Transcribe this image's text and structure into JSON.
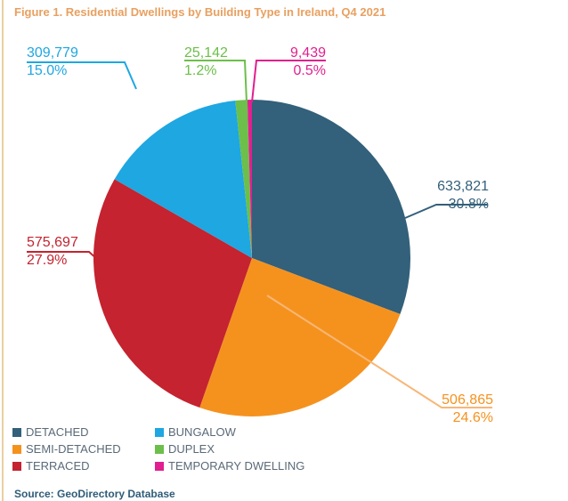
{
  "chart_data": {
    "type": "pie",
    "title": "Figure 1. Residential Dwellings by Building Type in Ireland, Q4 2021",
    "source": "Source: GeoDirectory Database",
    "legend_placement": "bottom-left",
    "slices": [
      {
        "name": "DETACHED",
        "value": 633821,
        "value_label": "633,821",
        "percent_label": "30.8%",
        "percent": 30.8,
        "color": "#33607a"
      },
      {
        "name": "SEMI-DETACHED",
        "value": 506865,
        "value_label": "506,865",
        "percent_label": "24.6%",
        "percent": 24.6,
        "color": "#f5921e"
      },
      {
        "name": "TERRACED",
        "value": 575697,
        "value_label": "575,697",
        "percent_label": "27.9%",
        "percent": 27.9,
        "color": "#c4232f"
      },
      {
        "name": "BUNGALOW",
        "value": 309779,
        "value_label": "309,779",
        "percent_label": "15.0%",
        "percent": 15.0,
        "color": "#1ea7e1"
      },
      {
        "name": "DUPLEX",
        "value": 25142,
        "value_label": "25,142",
        "percent_label": "1.2%",
        "percent": 1.2,
        "color": "#6cbf4a"
      },
      {
        "name": "TEMPORARY DWELLING",
        "value": 9439,
        "value_label": "9,439",
        "percent_label": "0.5%",
        "percent": 0.5,
        "color": "#e0208f"
      }
    ]
  }
}
